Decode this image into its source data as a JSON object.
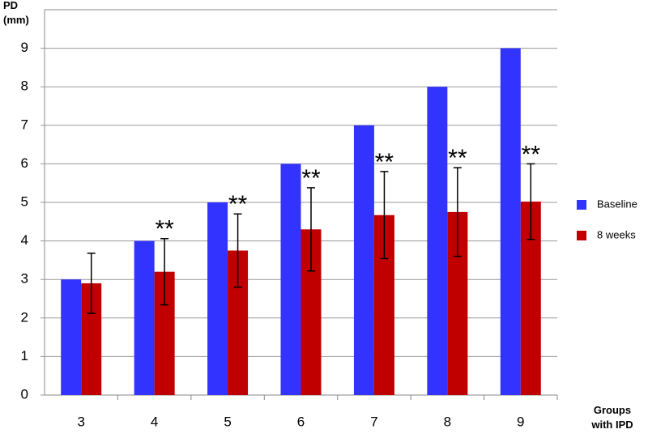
{
  "chart_data": {
    "type": "bar",
    "y_label": "PD\n(mm)",
    "x_label": "Groups\nwith IPD",
    "categories": [
      "3",
      "4",
      "5",
      "6",
      "7",
      "8",
      "9"
    ],
    "series": [
      {
        "name": "Baseline",
        "color": "#3333ff",
        "values": [
          3,
          4,
          5,
          6,
          7,
          8,
          9
        ]
      },
      {
        "name": "8 weeks",
        "color": "#c00000",
        "values": [
          2.9,
          3.2,
          3.75,
          4.3,
          4.67,
          4.75,
          5.02
        ],
        "errors": [
          0.78,
          0.86,
          0.95,
          1.08,
          1.13,
          1.15,
          0.98
        ]
      }
    ],
    "annotations": [
      {
        "x": "4",
        "text": "**"
      },
      {
        "x": "5",
        "text": "**"
      },
      {
        "x": "6",
        "text": "**"
      },
      {
        "x": "7",
        "text": "**"
      },
      {
        "x": "8",
        "text": "**"
      },
      {
        "x": "9",
        "text": "**"
      }
    ],
    "ylim": [
      0,
      10
    ],
    "yticks": [
      0,
      1,
      2,
      3,
      4,
      5,
      6,
      7,
      8,
      9
    ],
    "grid": true,
    "legend": "right"
  }
}
